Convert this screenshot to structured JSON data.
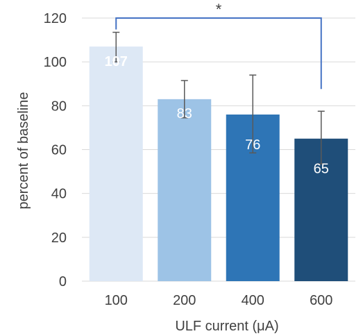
{
  "chart_data": {
    "type": "bar",
    "title": "",
    "xlabel": "ULF current (μA)",
    "ylabel": "percent of baseline",
    "categories": [
      "100",
      "200",
      "400",
      "600"
    ],
    "values": [
      107,
      83,
      76,
      65
    ],
    "error": [
      [
        100,
        113.5
      ],
      [
        74.5,
        91.5
      ],
      [
        58.5,
        94
      ],
      [
        53.5,
        77.5
      ]
    ],
    "data_labels": [
      "107",
      "83",
      "76",
      "65"
    ],
    "ylim": [
      0,
      120
    ],
    "yticks": [
      0,
      20,
      40,
      60,
      80,
      100,
      120
    ],
    "ytick_labels": [
      "0",
      "20",
      "40",
      "60",
      "80",
      "100",
      "120"
    ],
    "grid": true,
    "legend": "none",
    "significance": {
      "label": "*",
      "from": "100",
      "to": "600"
    },
    "colors": {
      "bars": [
        "#dde8f5",
        "#9dc3e6",
        "#2e75b6",
        "#1f4e79"
      ],
      "data_labels": [
        "#ffffff",
        "#ffffff",
        "#ffffff",
        "#ffffff"
      ],
      "bracket": "#4472c4",
      "error_bars": "#595959",
      "grid": "#d9d9d9",
      "text": "#404040"
    }
  }
}
